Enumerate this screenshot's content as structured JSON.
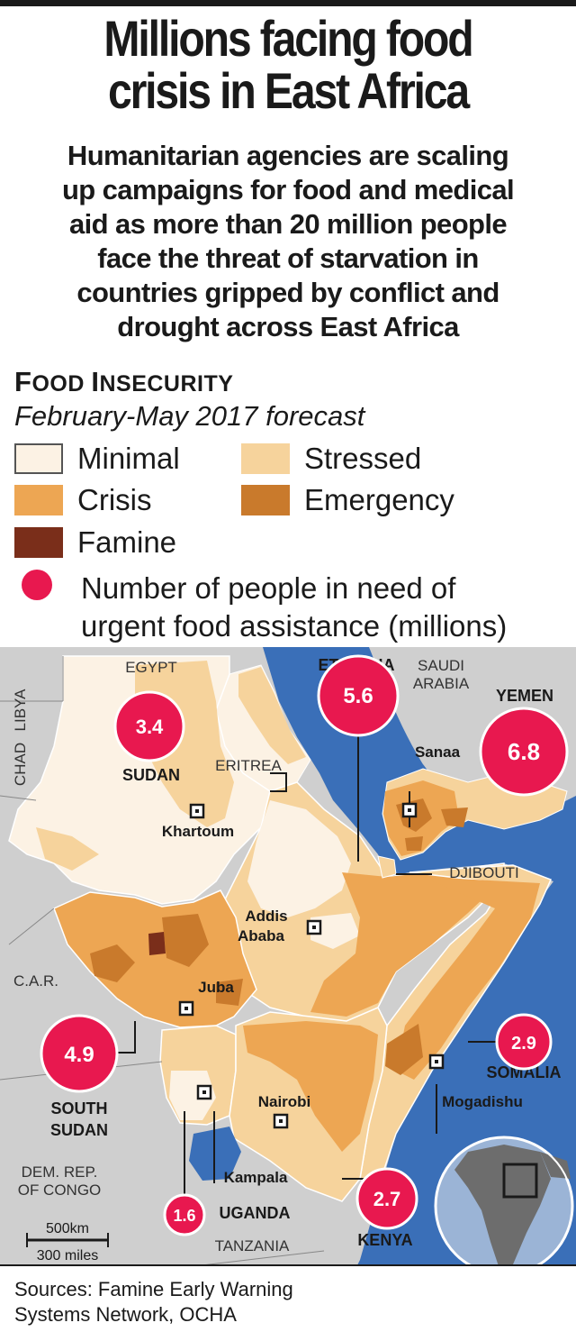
{
  "title": {
    "line1": "Millions facing food",
    "line2": "crisis in East Africa"
  },
  "subtitle": {
    "lines": [
      "Humanitarian agencies are scaling",
      "up campaigns for food and medical",
      "aid as more than 20 million people",
      "face the threat of starvation in",
      "countries gripped by conflict and",
      "drought across East Africa"
    ]
  },
  "section": {
    "first_big": "F",
    "first_rest": "OOD ",
    "second_big": "I",
    "second_rest": "NSECURITY"
  },
  "forecast": "February-May 2017 forecast",
  "legend": {
    "minimal": "Minimal",
    "stressed": "Stressed",
    "crisis": "Crisis",
    "emergency": "Emergency",
    "famine": "Famine",
    "people_line1": "Number of people in need of",
    "people_line2": "urgent food assistance (millions)"
  },
  "colors": {
    "minimal": "#fcf2e4",
    "stressed": "#f6d39c",
    "crisis": "#eda653",
    "emergency": "#c97a2c",
    "famine": "#7a2e1a",
    "bubble": "#e8184f",
    "sea": "#3a6fb8",
    "land_grey": "#cfcfcf"
  },
  "map": {
    "neighbors": {
      "libya": "LIBYA",
      "egypt": "EGYPT",
      "chad": "CHAD",
      "car": "C.A.R.",
      "drc_line1": "DEM. REP.",
      "drc_line2": "OF CONGO",
      "tanzania": "TANZANIA",
      "saudi_line1": "SAUDI",
      "saudi_line2": "ARABIA",
      "eritrea": "ERITREA",
      "djibouti": "DJIBOUTI"
    },
    "countries": {
      "sudan": "SUDAN",
      "ethiopia": "ETHIOPIA",
      "yemen": "YEMEN",
      "somalia": "SOMALIA",
      "south_sudan_line1": "SOUTH",
      "south_sudan_line2": "SUDAN",
      "uganda": "UGANDA",
      "kenya": "KENYA"
    },
    "cities": {
      "khartoum": "Khartoum",
      "addis_line1": "Addis",
      "addis_line2": "Ababa",
      "juba": "Juba",
      "nairobi": "Nairobi",
      "kampala": "Kampala",
      "mogadishu": "Mogadishu",
      "sanaa": "Sanaa"
    },
    "bubbles": {
      "sudan": "3.4",
      "ethiopia": "5.6",
      "yemen": "6.8",
      "south_sudan": "4.9",
      "somalia": "2.9",
      "kenya": "2.7",
      "uganda": "1.6"
    },
    "scale": {
      "km": "500km",
      "miles": "300 miles"
    }
  },
  "sources": {
    "line1": "Sources: Famine Early Warning",
    "line2": "Systems Network, OCHA"
  }
}
